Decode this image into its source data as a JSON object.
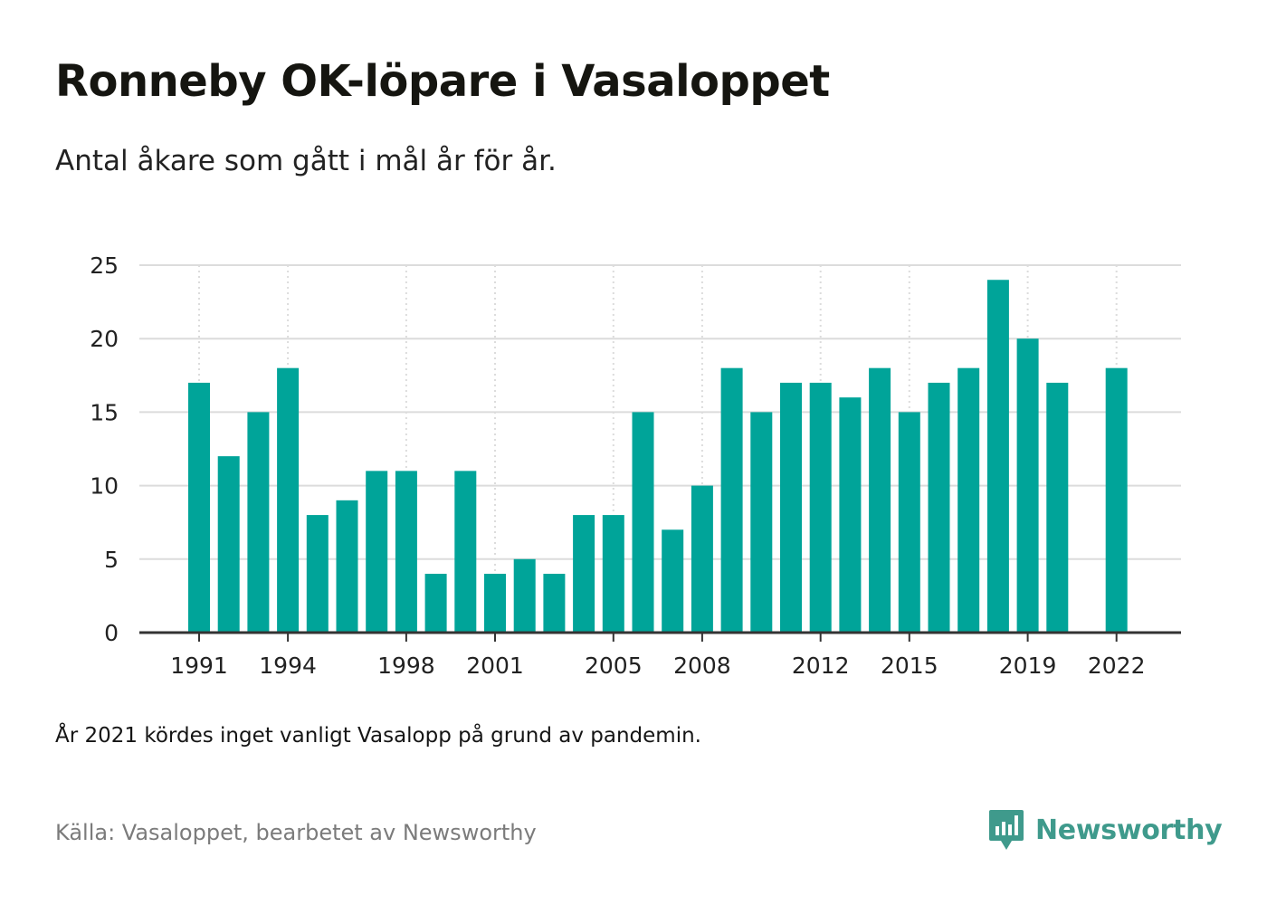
{
  "title": "Ronneby OK-löpare i Vasaloppet",
  "subtitle": "Antal åkare som gått i mål år för år.",
  "note": "År 2021 kördes inget vanligt Vasalopp på grund av pandemin.",
  "source": "Källa: Vasaloppet, bearbetet av Newsworthy",
  "brand": {
    "name": "Newsworthy",
    "icon": "newsworthy-logo-icon",
    "color": "#3f9a8c"
  },
  "colors": {
    "bar": "#00a499",
    "grid": "#dcdcdc",
    "axis": "#333333"
  },
  "chart_data": {
    "type": "bar",
    "title": "Ronneby OK-löpare i Vasaloppet",
    "subtitle": "Antal åkare som gått i mål år för år.",
    "xlabel": "",
    "ylabel": "",
    "ylim": [
      0,
      25
    ],
    "yticks": [
      0,
      5,
      10,
      15,
      20,
      25
    ],
    "xticks": [
      1991,
      1994,
      1998,
      2001,
      2005,
      2008,
      2012,
      2015,
      2019,
      2022
    ],
    "grid": true,
    "legend": "none",
    "categories": [
      1991,
      1992,
      1993,
      1994,
      1995,
      1996,
      1997,
      1998,
      1999,
      2000,
      2001,
      2002,
      2003,
      2004,
      2005,
      2006,
      2007,
      2008,
      2009,
      2010,
      2011,
      2012,
      2013,
      2014,
      2015,
      2016,
      2017,
      2018,
      2019,
      2020,
      2021,
      2022
    ],
    "values": [
      17,
      12,
      15,
      18,
      8,
      9,
      11,
      11,
      4,
      11,
      4,
      5,
      4,
      8,
      8,
      15,
      7,
      10,
      18,
      15,
      17,
      17,
      16,
      18,
      15,
      17,
      18,
      24,
      20,
      17,
      null,
      18
    ]
  }
}
